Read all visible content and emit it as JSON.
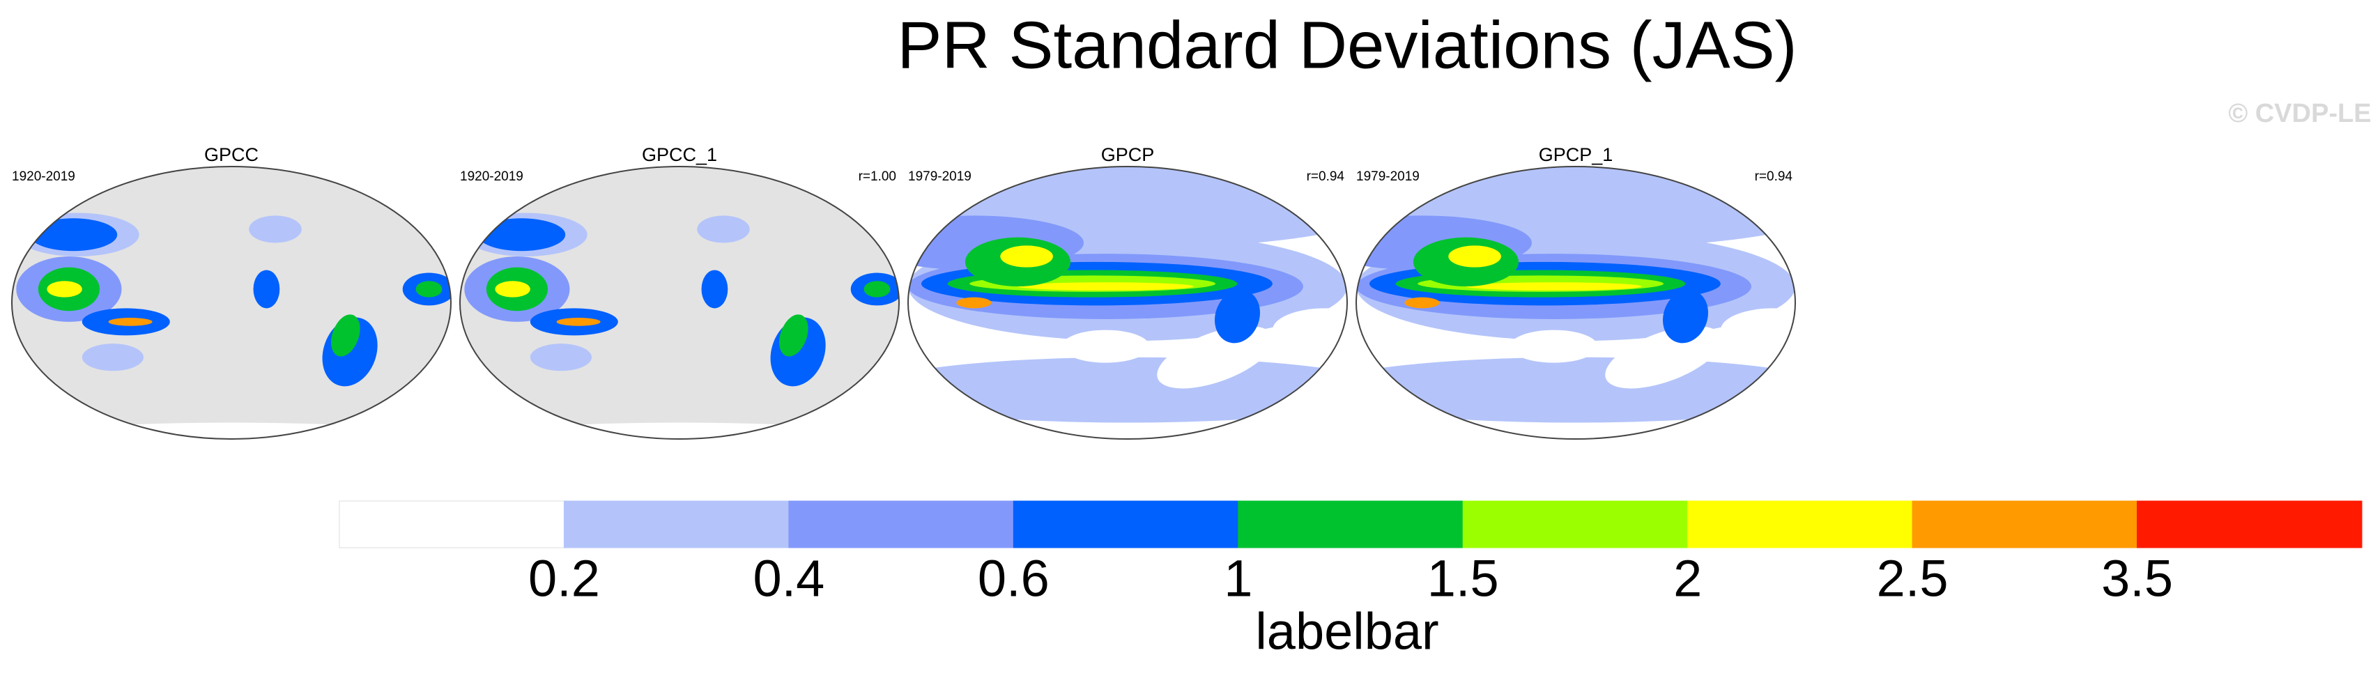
{
  "title": "PR Standard Deviations (JAS)",
  "watermark": "© CVDP-LE",
  "panels": [
    {
      "title": "GPCC",
      "left": "1920-2019"
    },
    {
      "title": "GPCC_1",
      "left": "1920-2019",
      "right": "r=1.00"
    },
    {
      "title": "GPCP",
      "left": "1979-2019",
      "right": "r=0.94"
    },
    {
      "title": "GPCP_1",
      "left": "1979-2019",
      "right": "r=0.94"
    }
  ],
  "colorbar": {
    "levels": [
      0.2,
      0.4,
      0.6,
      1,
      1.5,
      2,
      2.5,
      3.5
    ],
    "colors": [
      "#ffffff",
      "#b4c4fa",
      "#8299fb",
      "#0061fe",
      "#00c22f",
      "#9cff00",
      "#ffff00",
      "#ff9a00",
      "#ff1a00"
    ],
    "label": "labelbar"
  }
}
